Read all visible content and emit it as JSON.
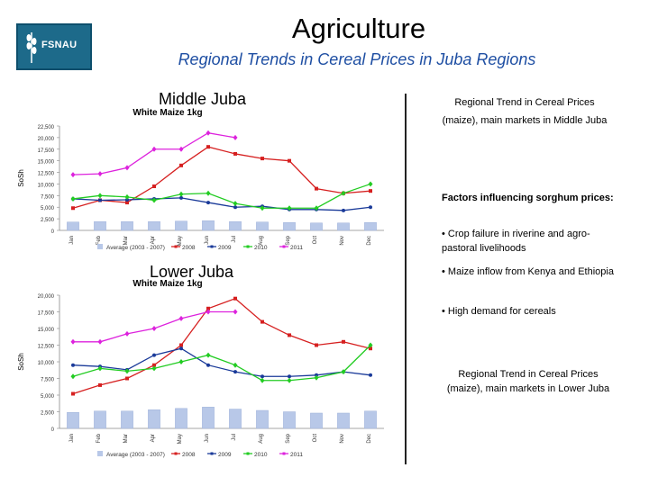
{
  "header": {
    "logo_text": "FSNAU",
    "title": "Agriculture",
    "subtitle": "Regional Trends in Cereal Prices in Juba Regions"
  },
  "colors": {
    "avg": "#b8c8e8",
    "y2008": "#d62020",
    "y2009": "#1a3a99",
    "y2010": "#22cc22",
    "y2011": "#dd22dd",
    "subtitle": "#1f4fa3"
  },
  "side": {
    "mj_caption": "Regional Trend in Cereal Prices (maize), main markets in Middle Juba",
    "factors_heading": "Factors influencing sorghum prices:",
    "bullets": [
      "• Crop failure in riverine and agro-pastoral livelihoods",
      "• Maize inflow from Kenya and Ethiopia",
      "• High demand for cereals"
    ],
    "lj_caption": "Regional Trend in Cereal Prices (maize), main markets in Lower Juba"
  },
  "chart_data": [
    {
      "type": "line",
      "region": "Middle Juba",
      "title": "White Maize 1kg",
      "ylabel": "SoSh",
      "ylim": [
        0,
        22500
      ],
      "yticks": [
        "22,500",
        "20,000",
        "17,500",
        "15,000",
        "12,500",
        "10,000",
        "7,500",
        "5,000",
        "2,500",
        "0"
      ],
      "categories": [
        "Jan",
        "Feb",
        "Mar",
        "Apr",
        "May",
        "Jun",
        "Jul",
        "Aug",
        "Sep",
        "Oct",
        "Nov",
        "Dec"
      ],
      "series": [
        {
          "name": "Average (2003 - 2007)",
          "kind": "bar",
          "values": [
            1800,
            1900,
            1900,
            1900,
            2000,
            2100,
            1900,
            1800,
            1700,
            1600,
            1600,
            1700
          ]
        },
        {
          "name": "2008",
          "values": [
            4800,
            6500,
            6000,
            9500,
            14000,
            18000,
            16500,
            15500,
            15000,
            9000,
            8000,
            8500
          ]
        },
        {
          "name": "2009",
          "values": [
            6800,
            6500,
            6600,
            6800,
            7000,
            6000,
            5000,
            5200,
            4500,
            4500,
            4300,
            5000
          ]
        },
        {
          "name": "2010",
          "values": [
            6800,
            7500,
            7200,
            6500,
            7800,
            8000,
            5800,
            4800,
            4800,
            4800,
            8000,
            10000
          ]
        },
        {
          "name": "2011",
          "values": [
            12000,
            12200,
            13500,
            17500,
            17500,
            21000,
            20000,
            null,
            null,
            null,
            null,
            null
          ]
        }
      ],
      "legend": [
        "Average (2003 - 2007)",
        "2008",
        "2009",
        "2010",
        "2011"
      ]
    },
    {
      "type": "line",
      "region": "Lower Juba",
      "title": "White Maize 1kg",
      "ylabel": "SoSh",
      "ylim": [
        0,
        20000
      ],
      "yticks": [
        "20,000",
        "17,500",
        "15,000",
        "12,500",
        "10,000",
        "7,500",
        "5,000",
        "2,500",
        "0"
      ],
      "categories": [
        "Jan",
        "Feb",
        "Mar",
        "Apr",
        "May",
        "Jun",
        "Jul",
        "Aug",
        "Sep",
        "Oct",
        "Nov",
        "Dec"
      ],
      "series": [
        {
          "name": "Average (2003 - 2007)",
          "kind": "bar",
          "values": [
            2400,
            2600,
            2600,
            2800,
            3000,
            3200,
            2900,
            2700,
            2500,
            2300,
            2300,
            2600
          ]
        },
        {
          "name": "2008",
          "values": [
            5200,
            6500,
            7500,
            9500,
            12500,
            18000,
            19500,
            16000,
            14000,
            12500,
            13000,
            12000
          ]
        },
        {
          "name": "2009",
          "values": [
            9500,
            9300,
            8800,
            11000,
            12000,
            9500,
            8500,
            7800,
            7800,
            8000,
            8500,
            8000
          ]
        },
        {
          "name": "2010",
          "values": [
            7800,
            9000,
            8600,
            9000,
            10000,
            11000,
            9500,
            7200,
            7200,
            7600,
            8500,
            12500
          ]
        },
        {
          "name": "2011",
          "values": [
            13000,
            13000,
            14200,
            15000,
            16500,
            17500,
            17500,
            null,
            null,
            null,
            null,
            null
          ]
        }
      ],
      "legend": [
        "Average (2003 - 2007)",
        "2008",
        "2009",
        "2010",
        "2011"
      ]
    }
  ]
}
